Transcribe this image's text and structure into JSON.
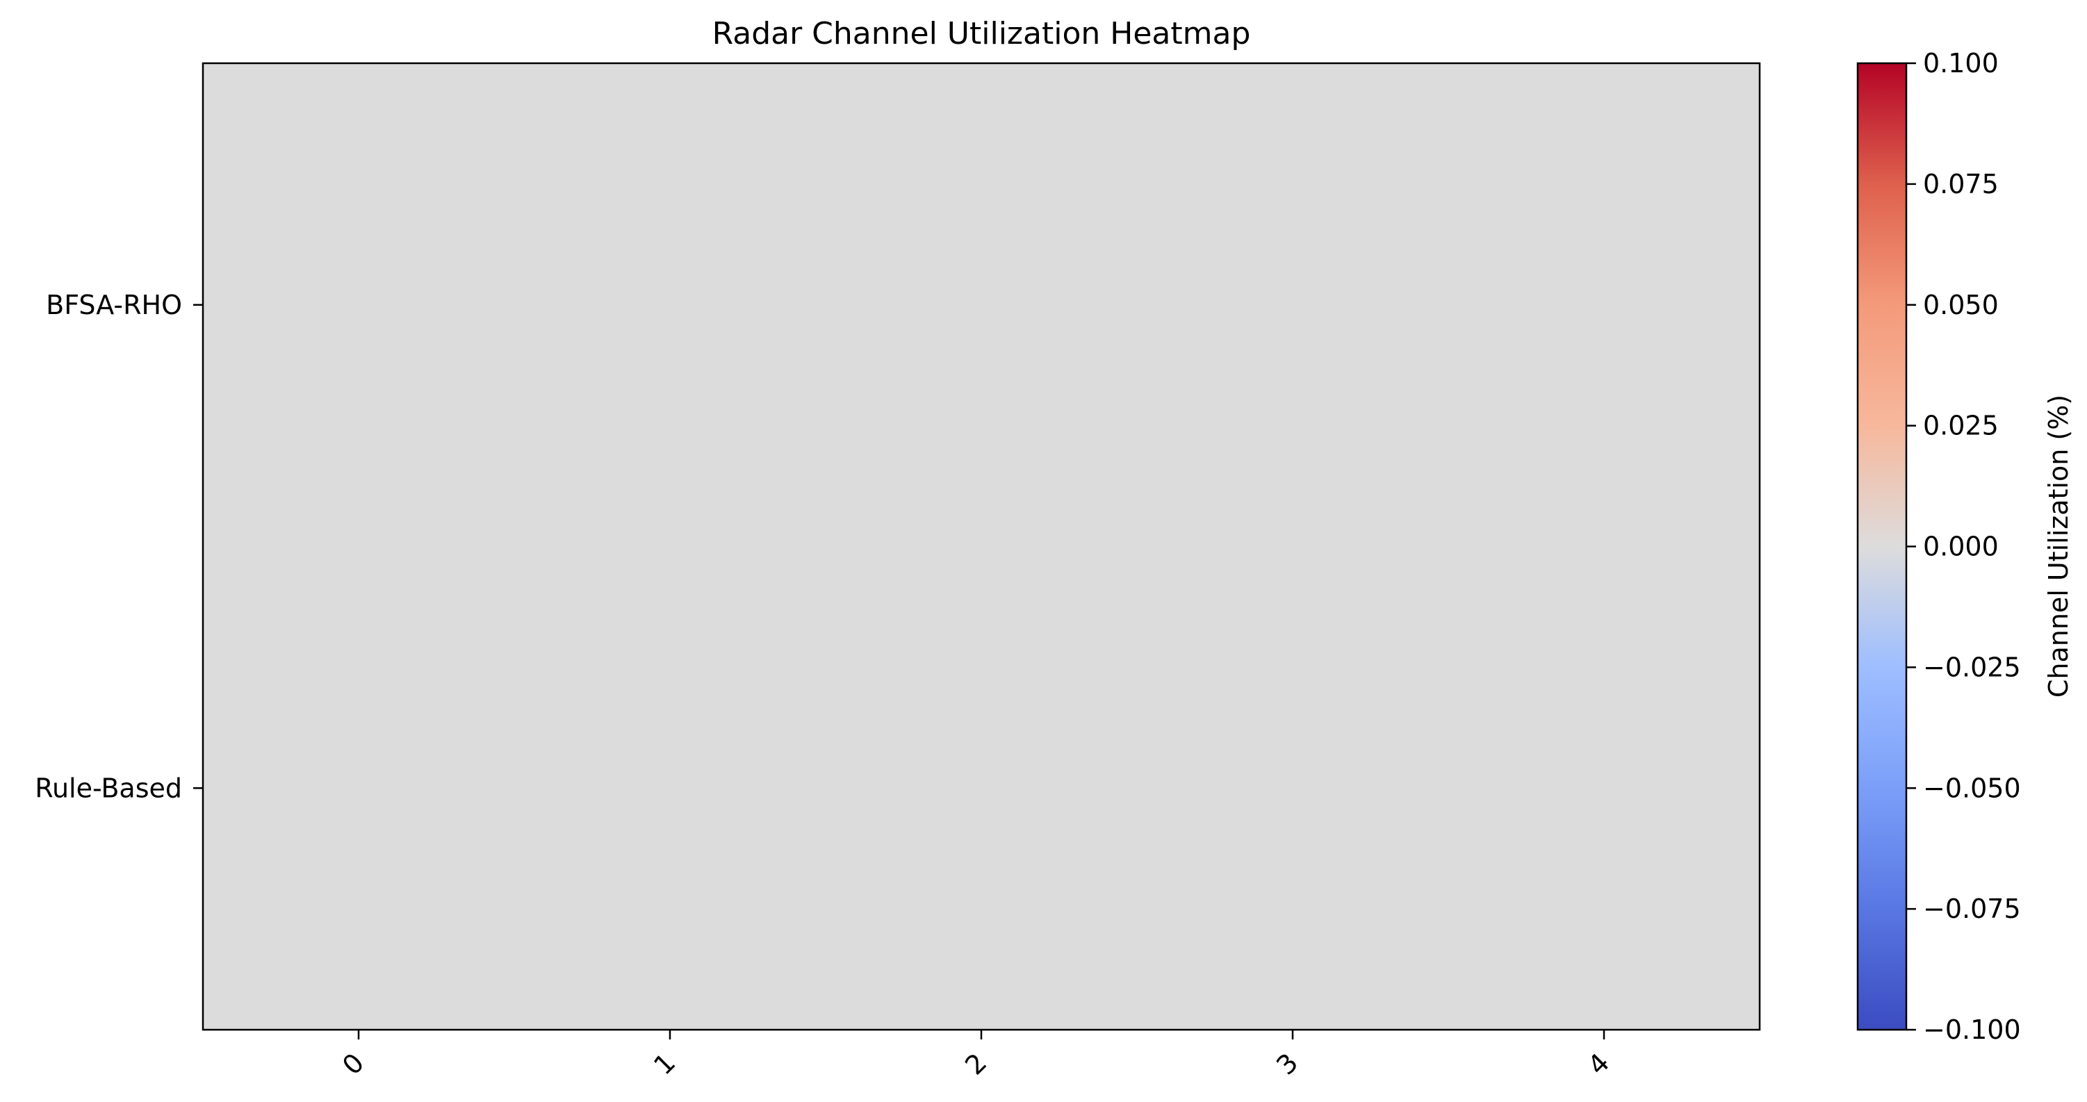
{
  "chart_data": {
    "type": "heatmap",
    "title": "Radar Channel Utilization Heatmap",
    "xlabel": "",
    "ylabel": "",
    "x_categories": [
      "0",
      "1",
      "2",
      "3",
      "4"
    ],
    "y_categories": [
      "BFSA-RHO",
      "Rule-Based"
    ],
    "values": [
      [
        0,
        0,
        0,
        0,
        0
      ],
      [
        0,
        0,
        0,
        0,
        0
      ]
    ],
    "colormap": "coolwarm",
    "colorbar": {
      "label": "Channel Utilization (%)",
      "range": [
        -0.1,
        0.1
      ],
      "ticks": [
        0.1,
        0.075,
        0.05,
        0.025,
        0.0,
        -0.025,
        -0.05,
        -0.075,
        -0.1
      ],
      "tick_labels": [
        "0.100",
        "0.075",
        "0.050",
        "0.025",
        "0.000",
        "−0.025",
        "−0.050",
        "−0.075",
        "−0.100"
      ]
    },
    "x_tick_rotation": 45,
    "grid": false,
    "colors": {
      "min": "#3b4cc0",
      "mid": "#dddcdc",
      "max": "#b40426"
    }
  }
}
